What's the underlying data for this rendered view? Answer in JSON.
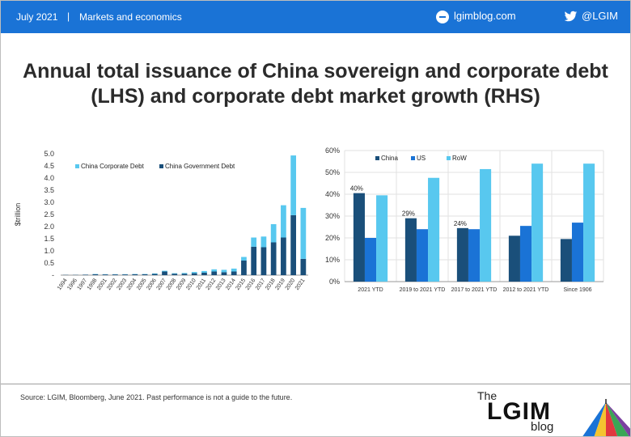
{
  "header": {
    "date": "July 2021",
    "separator": "|",
    "section": "Markets and economics",
    "website": "lgimblog.com",
    "twitter_handle": "@LGIM",
    "bar_color": "#1a73d6"
  },
  "title": "Annual total issuance of China sovereign and corporate debt (LHS) and corporate debt market growth (RHS)",
  "footer": {
    "source": "Source: LGIM, Bloomberg, June 2021. Past performance is not a guide to the future.",
    "brand_the": "The",
    "brand_name": "LGIM",
    "brand_blog": "blog"
  },
  "chart_data": [
    {
      "type": "bar",
      "stacked": true,
      "ylabel": "$trillion",
      "ylim": [
        0,
        5.0
      ],
      "y_ticks": [
        "-",
        "0.5",
        "1.0",
        "1.5",
        "2.0",
        "2.5",
        "3.0",
        "3.5",
        "4.0",
        "4.5",
        "5.0"
      ],
      "categories": [
        "1994",
        "1996",
        "1997",
        "1998",
        "2001",
        "2002",
        "2003",
        "2004",
        "2005",
        "2006",
        "2007",
        "2008",
        "2009",
        "2010",
        "2011",
        "2012",
        "2013",
        "2014",
        "2015",
        "2016",
        "2017",
        "2018",
        "2019",
        "2020",
        "2021"
      ],
      "series": [
        {
          "name": "China Government Debt",
          "color": "#1a4f7a",
          "values": [
            0.01,
            0.01,
            0.02,
            0.04,
            0.03,
            0.03,
            0.03,
            0.04,
            0.04,
            0.05,
            0.15,
            0.06,
            0.06,
            0.08,
            0.1,
            0.15,
            0.12,
            0.15,
            0.6,
            1.17,
            1.15,
            1.35,
            1.55,
            2.47,
            0.67
          ]
        },
        {
          "name": "China Corporate Debt",
          "color": "#58c8ef",
          "values": [
            0.0,
            0.0,
            0.0,
            0.01,
            0.01,
            0.01,
            0.01,
            0.01,
            0.01,
            0.02,
            0.03,
            0.02,
            0.03,
            0.05,
            0.07,
            0.09,
            0.1,
            0.12,
            0.15,
            0.38,
            0.44,
            0.75,
            1.33,
            2.46,
            2.1
          ]
        }
      ],
      "legend": "top-left"
    },
    {
      "type": "bar",
      "ylim": [
        0,
        60
      ],
      "y_ticks": [
        "0%",
        "10%",
        "20%",
        "30%",
        "40%",
        "50%",
        "60%"
      ],
      "categories": [
        "2021 YTD",
        "2019 to 2021 YTD",
        "2017 to 2021 YTD",
        "2012 to 2021 YTD",
        "Since 1906"
      ],
      "series": [
        {
          "name": "China",
          "color": "#1a4f7a",
          "values": [
            40.5,
            29,
            24.5,
            21,
            19.5
          ]
        },
        {
          "name": "US",
          "color": "#1a73d6",
          "values": [
            20,
            24,
            24,
            25.5,
            27
          ]
        },
        {
          "name": "RoW",
          "color": "#58c8ef",
          "values": [
            39.5,
            47.5,
            51.5,
            54,
            54
          ]
        }
      ],
      "data_labels": {
        "series": "China",
        "labels": [
          "40%",
          "29%",
          "24%"
        ]
      },
      "legend": "top-left"
    }
  ]
}
